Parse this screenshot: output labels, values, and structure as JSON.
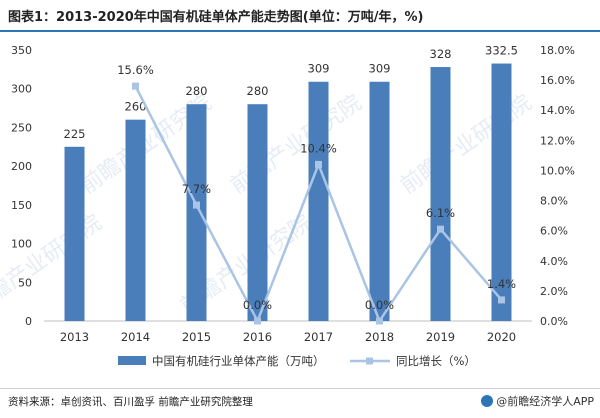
{
  "title": "图表1：2013-2020年中国有机硅单体产能走势图(单位：万吨/年，%)",
  "source": "资料来源：卓创资讯、百川盈孚 前瞻产业研究院整理",
  "logo_text": "@前瞻经济学人APP",
  "watermark": "前瞻产业研究院",
  "colors": {
    "bar": "#4a7ebb",
    "line": "#a9c4e4",
    "accent": "#2e75b6"
  },
  "chart_data": {
    "type": "bar",
    "categories": [
      "2013",
      "2014",
      "2015",
      "2016",
      "2017",
      "2018",
      "2019",
      "2020"
    ],
    "series": [
      {
        "name": "中国有机硅行业单体产能（万吨）",
        "type": "bar",
        "axis": "left",
        "values": [
          225,
          260,
          280,
          280,
          309,
          309,
          328,
          332.5
        ],
        "labels": [
          "225",
          "260",
          "280",
          "280",
          "309",
          "309",
          "328",
          "332.5"
        ]
      },
      {
        "name": "同比增长（%）",
        "type": "line",
        "axis": "right",
        "values": [
          null,
          15.6,
          7.7,
          0.0,
          10.4,
          0.0,
          6.1,
          1.4
        ],
        "labels": [
          "",
          "15.6%",
          "7.7%",
          "0.0%",
          "10.4%",
          "0.0%",
          "6.1%",
          "1.4%"
        ]
      }
    ],
    "ylim_left": [
      0,
      350
    ],
    "yticks_left": [
      "0",
      "50",
      "100",
      "150",
      "200",
      "250",
      "300",
      "350"
    ],
    "ylim_right": [
      0,
      18
    ],
    "yticks_right": [
      "0.0%",
      "2.0%",
      "4.0%",
      "6.0%",
      "8.0%",
      "10.0%",
      "12.0%",
      "14.0%",
      "16.0%",
      "18.0%"
    ],
    "grid": false,
    "legend_position": "bottom"
  }
}
